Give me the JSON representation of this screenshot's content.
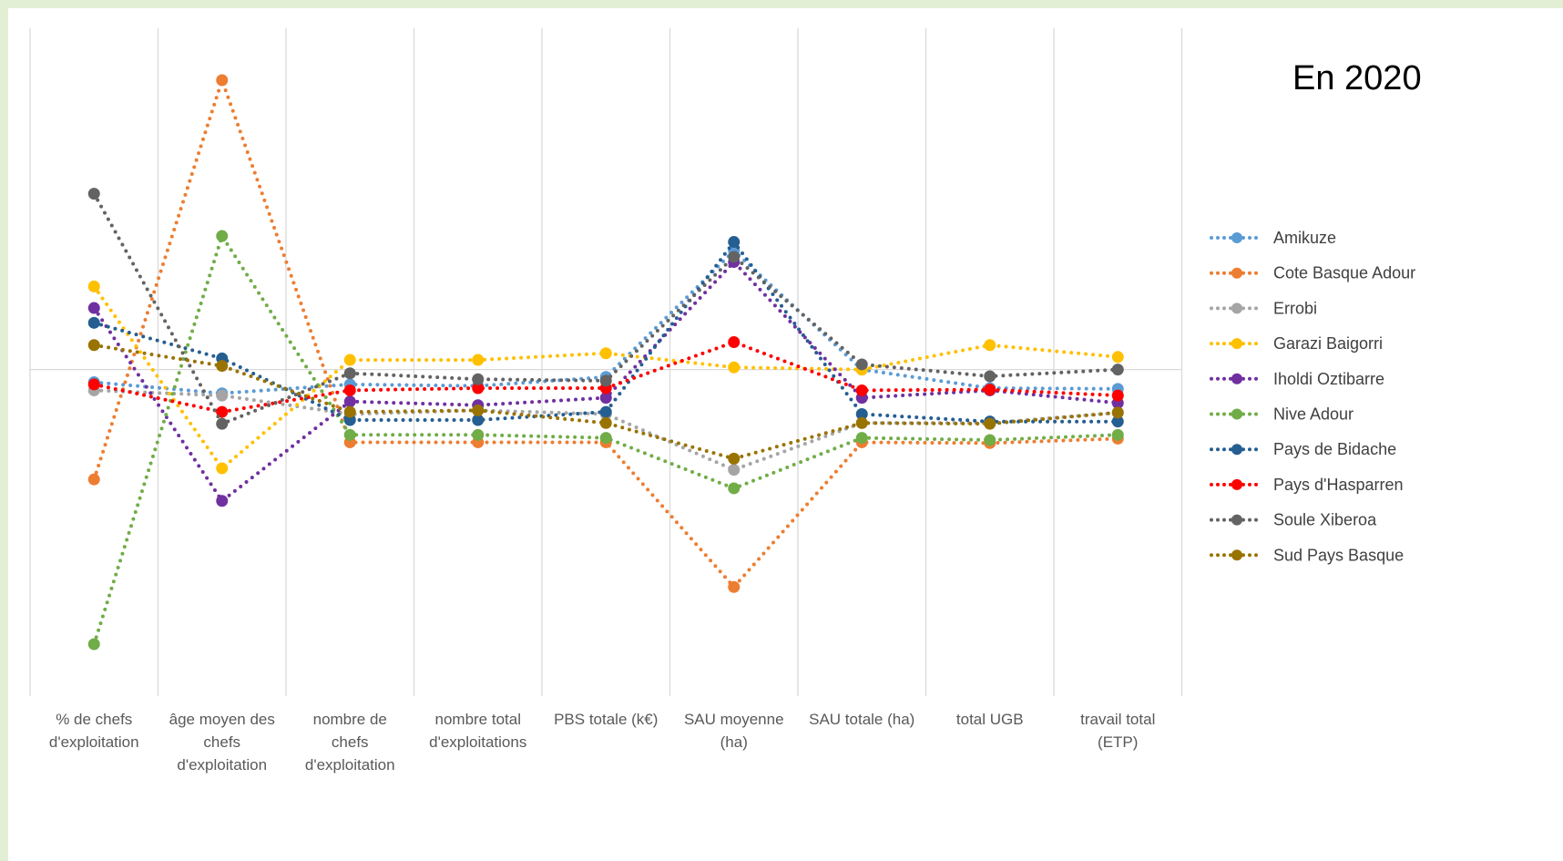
{
  "chart_data": {
    "type": "line",
    "title": "En 2020",
    "xlabel": "",
    "ylabel": "",
    "grid": "vertical",
    "legend_position": "right",
    "ylim": [
      -4.4,
      4.6
    ],
    "categories": [
      [
        "% de chefs",
        "d'exploitation"
      ],
      [
        "âge moyen des",
        "chefs",
        "d'exploitation"
      ],
      [
        "nombre de",
        "chefs",
        "d'exploitation"
      ],
      [
        "nombre total",
        "d'exploitations"
      ],
      [
        "PBS totale (k€)"
      ],
      [
        "SAU moyenne",
        "(ha)"
      ],
      [
        "SAU totale (ha)"
      ],
      [
        "total UGB"
      ],
      [
        "travail total",
        "(ETP)"
      ]
    ],
    "series": [
      {
        "name": "Amikuze",
        "color": "#5b9bd5",
        "values": [
          -0.17,
          -0.32,
          -0.2,
          -0.22,
          -0.1,
          1.6,
          0.0,
          -0.25,
          -0.26
        ]
      },
      {
        "name": "Cote Basque Adour",
        "color": "#ed7d31",
        "values": [
          -1.48,
          3.9,
          -0.98,
          -0.98,
          -0.98,
          -2.93,
          -0.98,
          -0.99,
          -0.93
        ]
      },
      {
        "name": "Errobi",
        "color": "#a5a5a5",
        "values": [
          -0.28,
          -0.35,
          -0.6,
          -0.55,
          -0.6,
          -1.35,
          -0.72,
          -0.72,
          -0.58
        ]
      },
      {
        "name": "Garazi Baigorri",
        "color": "#ffc000",
        "values": [
          1.12,
          -1.33,
          0.13,
          0.13,
          0.22,
          0.03,
          0.0,
          0.33,
          0.17
        ]
      },
      {
        "name": "Iholdi Oztibarre",
        "color": "#7030a0",
        "values": [
          0.83,
          -1.77,
          -0.43,
          -0.48,
          -0.38,
          1.45,
          -0.38,
          -0.28,
          -0.45
        ]
      },
      {
        "name": "Nive Adour",
        "color": "#70ad47",
        "values": [
          -3.7,
          1.8,
          -0.88,
          -0.88,
          -0.92,
          -1.6,
          -0.92,
          -0.95,
          -0.88
        ]
      },
      {
        "name": "Pays de Bidache",
        "color": "#255e91",
        "values": [
          0.63,
          0.15,
          -0.68,
          -0.68,
          -0.57,
          1.72,
          -0.6,
          -0.7,
          -0.7
        ]
      },
      {
        "name": "Pays d'Hasparren",
        "color": "#ff0000",
        "values": [
          -0.2,
          -0.57,
          -0.28,
          -0.25,
          -0.25,
          0.37,
          -0.28,
          -0.27,
          -0.35
        ]
      },
      {
        "name": "Soule Xiberoa",
        "color": "#636363",
        "values": [
          2.37,
          -0.73,
          -0.05,
          -0.13,
          -0.15,
          1.52,
          0.07,
          -0.09,
          0.0
        ]
      },
      {
        "name": "Sud Pays Basque",
        "color": "#997300",
        "values": [
          0.33,
          0.05,
          -0.57,
          -0.55,
          -0.72,
          -1.2,
          -0.72,
          -0.73,
          -0.58
        ]
      }
    ]
  }
}
